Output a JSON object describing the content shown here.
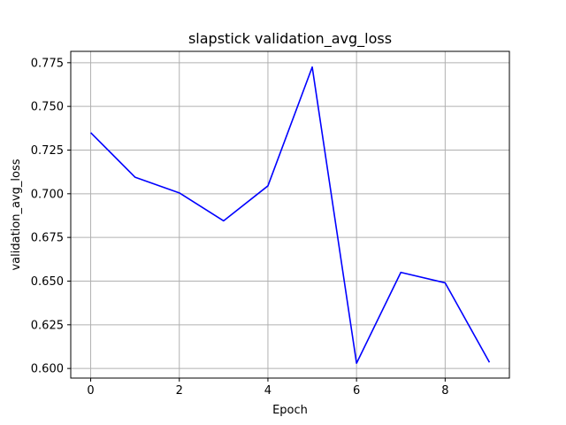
{
  "chart_data": {
    "type": "line",
    "title": "slapstick validation_avg_loss",
    "xlabel": "Epoch",
    "ylabel": "validation_avg_loss",
    "grid": true,
    "xlim": [
      -0.45,
      9.45
    ],
    "ylim": [
      0.5945,
      0.7815
    ],
    "xticks": [
      0,
      2,
      4,
      6,
      8
    ],
    "xtick_labels": [
      "0",
      "2",
      "4",
      "6",
      "8"
    ],
    "yticks": [
      0.6,
      0.625,
      0.65,
      0.675,
      0.7,
      0.725,
      0.75,
      0.775
    ],
    "ytick_labels": [
      "0.600",
      "0.625",
      "0.650",
      "0.675",
      "0.700",
      "0.725",
      "0.750",
      "0.775"
    ],
    "series": [
      {
        "name": "validation_avg_loss",
        "color": "#0000ff",
        "x": [
          0,
          1,
          2,
          3,
          4,
          5,
          6,
          7,
          8,
          9
        ],
        "values": [
          0.735,
          0.7095,
          0.7005,
          0.6845,
          0.7045,
          0.7725,
          0.603,
          0.655,
          0.649,
          0.6035
        ]
      }
    ]
  }
}
